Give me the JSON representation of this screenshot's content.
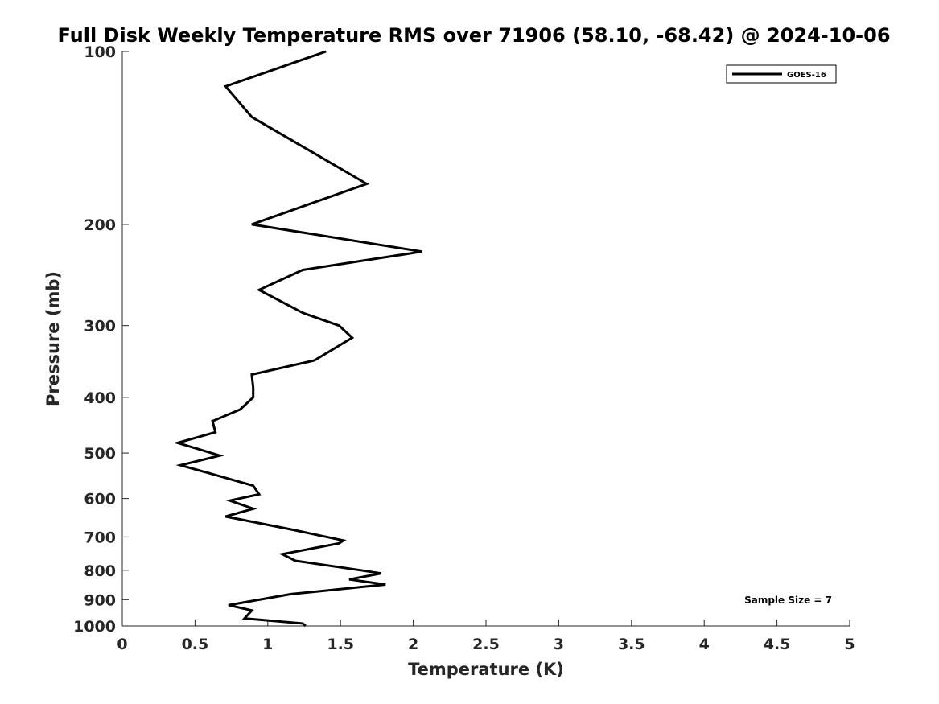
{
  "chart_data": {
    "type": "line",
    "title": "Full Disk Weekly Temperature RMS over 71906 (58.10, -68.42) @ 2024-10-06",
    "xlabel": "Temperature (K)",
    "ylabel": "Pressure (mb)",
    "xlim": [
      0,
      5
    ],
    "ylim": [
      1000,
      100
    ],
    "yscale": "log",
    "y_reversed": true,
    "grid": false,
    "legend_position": "top-right",
    "x_ticks": [
      "0",
      "0.5",
      "1",
      "1.5",
      "2",
      "2.5",
      "3",
      "3.5",
      "4",
      "4.5",
      "5"
    ],
    "y_ticks": [
      "100",
      "200",
      "300",
      "400",
      "500",
      "600",
      "700",
      "800",
      "900",
      "1000"
    ],
    "series": [
      {
        "name": "GOES-16",
        "color": "#000000",
        "x": [
          1.4,
          0.71,
          0.89,
          1.68,
          0.89,
          2.06,
          1.24,
          0.94,
          1.24,
          1.49,
          1.58,
          1.32,
          0.89,
          0.9,
          0.9,
          0.81,
          0.62,
          0.64,
          0.38,
          0.67,
          0.4,
          0.63,
          0.9,
          0.94,
          0.74,
          0.9,
          0.71,
          1.17,
          1.52,
          1.49,
          1.1,
          1.19,
          1.64,
          1.78,
          1.56,
          1.81,
          1.16,
          0.73,
          0.89,
          0.84,
          1.24,
          1.26
        ],
        "y": [
          100,
          115,
          130,
          170,
          200,
          223,
          240,
          260,
          285,
          300,
          315,
          345,
          365,
          385,
          400,
          420,
          440,
          460,
          480,
          505,
          525,
          545,
          570,
          590,
          605,
          625,
          645,
          680,
          710,
          718,
          750,
          770,
          800,
          810,
          830,
          847,
          880,
          920,
          940,
          970,
          990,
          1000
        ]
      }
    ],
    "annotations": [
      "Sample Size = 7"
    ]
  }
}
